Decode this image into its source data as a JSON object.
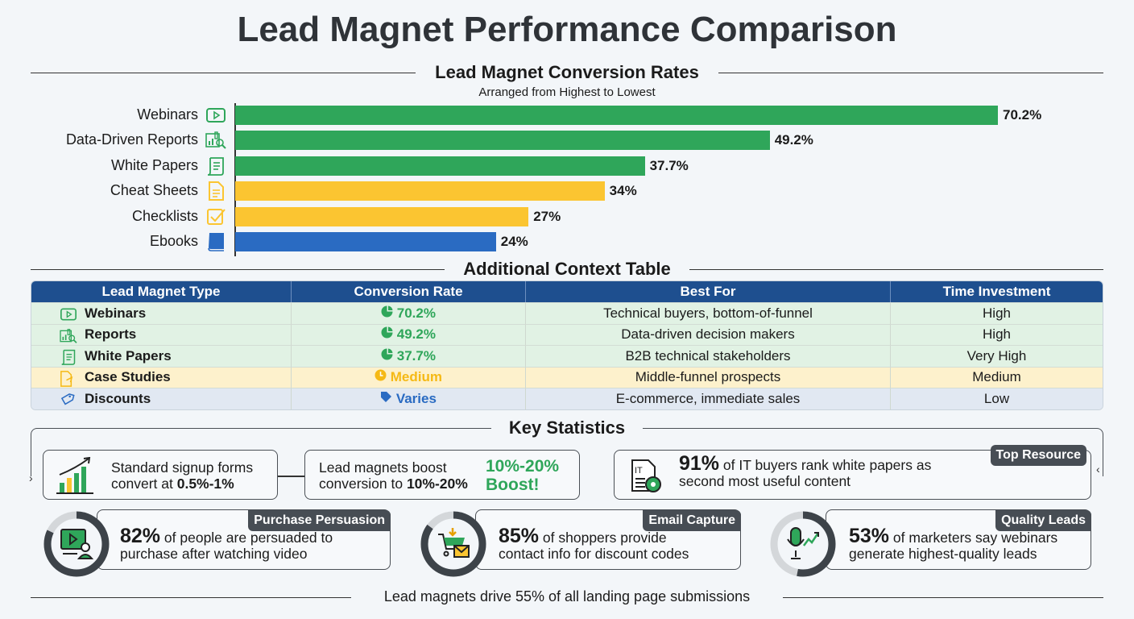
{
  "title": "Lead Magnet Performance Comparison",
  "chart_data": {
    "type": "bar",
    "orientation": "horizontal",
    "title": "Lead Magnet Conversion Rates",
    "subtitle": "Arranged from Highest to Lowest",
    "categories": [
      "Webinars",
      "Data-Driven Reports",
      "White Papers",
      "Cheat Sheets",
      "Checklists",
      "Ebooks"
    ],
    "values": [
      70.2,
      49.2,
      37.7,
      34,
      27,
      24
    ],
    "value_labels": [
      "70.2%",
      "49.2%",
      "37.7%",
      "34%",
      "27%",
      "24%"
    ],
    "colors": [
      "#2fa65a",
      "#2fa65a",
      "#2fa65a",
      "#fbc531",
      "#fbc531",
      "#2a6bc2"
    ],
    "icons": [
      "video-play-icon",
      "report-magnifier-icon",
      "scroll-document-icon",
      "document-icon",
      "checkbox-icon",
      "book-icon"
    ],
    "xlim": [
      0,
      70.2
    ],
    "grid": false
  },
  "table": {
    "title": "Additional Context Table",
    "headers": [
      "Lead Magnet Type",
      "Conversion Rate",
      "Best For",
      "Time Investment"
    ],
    "rows": [
      {
        "type": "Webinars",
        "rate": "70.2%",
        "best": "Technical buyers, bottom-of-funnel",
        "time": "High",
        "color": "#2fa65a",
        "style": "rg"
      },
      {
        "type": "Reports",
        "rate": "49.2%",
        "best": "Data-driven decision makers",
        "time": "High",
        "color": "#2fa65a",
        "style": "rg"
      },
      {
        "type": "White Papers",
        "rate": "37.7%",
        "best": "B2B technical stakeholders",
        "time": "Very High",
        "color": "#2fa65a",
        "style": "rg"
      },
      {
        "type": "Case Studies",
        "rate": "Medium",
        "best": "Middle-funnel prospects",
        "time": "Medium",
        "color": "#f5b915",
        "style": "ry"
      },
      {
        "type": "Discounts",
        "rate": "Varies",
        "best": "E-commerce, immediate sales",
        "time": "Low",
        "color": "#2a6bc2",
        "style": "rb"
      }
    ]
  },
  "stats": {
    "title": "Key Statistics",
    "s1": {
      "pre": "Standard signup forms",
      "pre2": "convert at ",
      "bold": "0.5%-1%"
    },
    "s2": {
      "pre": "Lead magnets boost",
      "pre2": "conversion to ",
      "bold": "10%-20%",
      "hl1": "10%-20%",
      "hl2": "Boost!"
    },
    "s3": {
      "big": "91%",
      "t1": " of IT buyers rank white papers as",
      "t2": "second most useful content",
      "tag": "Top Resource"
    },
    "s4": {
      "big": "82%",
      "t1": " of people are persuaded to",
      "t2": "purchase after watching video",
      "tag": "Purchase Persuasion",
      "pct": 82
    },
    "s5": {
      "big": "85%",
      "t1": " of shoppers provide",
      "t2": "contact info for discount codes",
      "tag": "Email Capture",
      "pct": 85
    },
    "s6": {
      "big": "53%",
      "t1": " of marketers say webinars",
      "t2": "generate highest-quality leads",
      "tag": "Quality Leads",
      "pct": 53
    }
  },
  "footer": "Lead magnets drive 55% of all landing page submissions"
}
